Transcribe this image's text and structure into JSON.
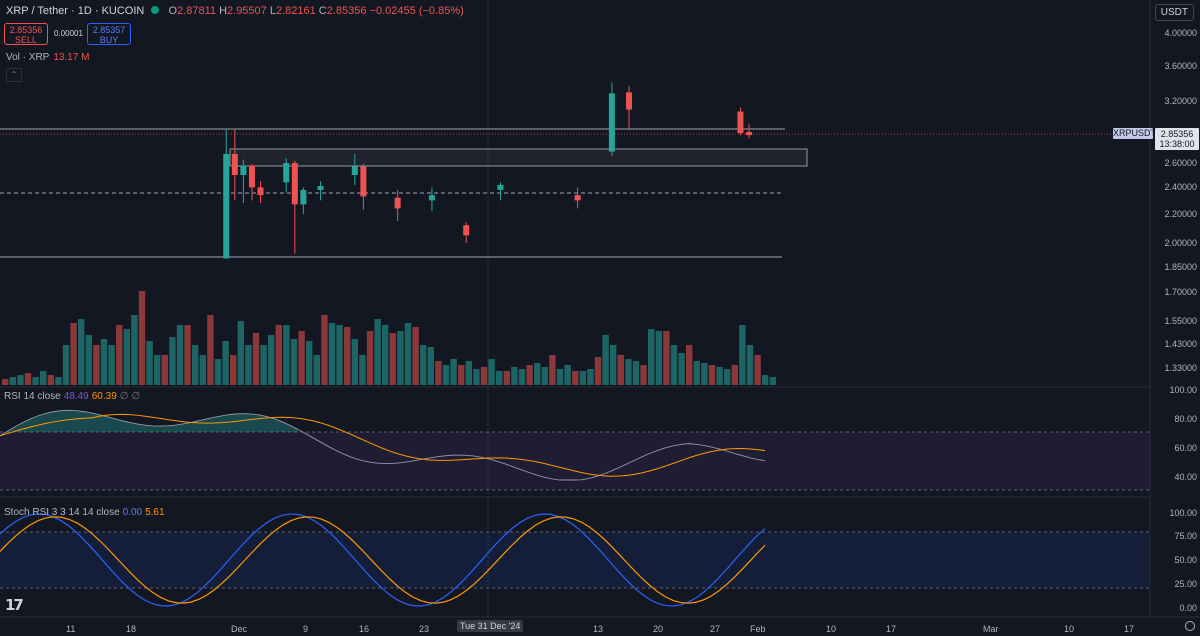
{
  "header": {
    "symbol": "XRP / Tether · 1D · KUCOIN",
    "open_label": "O",
    "open": "2.87811",
    "high_label": "H",
    "high": "2.95507",
    "low_label": "L",
    "low": "2.82161",
    "close_label": "C",
    "close": "2.85356",
    "change": "−0.02455 (−0.85%)"
  },
  "trade": {
    "sell_price": "2.85356",
    "sell_label": "SELL",
    "spread": "0.00001",
    "buy_price": "2.85357",
    "buy_label": "BUY"
  },
  "currency_button": "USDT",
  "volume_legend": {
    "label": "Vol · XRP",
    "value": "13.17 M"
  },
  "rsi_legend": {
    "label": "RSI 14 close",
    "v1": "48.49",
    "v2": "60.39",
    "v3": "∅",
    "v4": "∅"
  },
  "stoch_legend": {
    "label": "Stoch RSI 3 3 14 14 close",
    "v1": "0.00",
    "v2": "5.61"
  },
  "price_axis": [
    "4.00000",
    "3.60000",
    "3.20000",
    "2.60000",
    "2.40000",
    "2.20000",
    "2.00000",
    "1.85000",
    "1.70000",
    "1.55000",
    "1.43000",
    "1.33000"
  ],
  "current_price_tag": {
    "symbol": "XRPUSDT",
    "price": "2.85356",
    "countdown": "13:38:00"
  },
  "rsi_axis": [
    "100.00",
    "80.00",
    "60.00",
    "40.00"
  ],
  "stoch_axis": [
    "100.00",
    "75.00",
    "50.00",
    "25.00",
    "0.00"
  ],
  "time_axis": [
    "11",
    "18",
    "Dec",
    "9",
    "16",
    "23",
    "13",
    "20",
    "27",
    "Feb",
    "10",
    "17",
    "Mar",
    "10",
    "17"
  ],
  "crosshair_date": "Tue 31 Dec '24",
  "colors": {
    "up": "#26a69a",
    "down": "#ef5350",
    "bg": "#131722",
    "rsi": "#7e57c2",
    "ma": "#ff9800",
    "stoch_k": "#2962ff",
    "stoch_d": "#ff9800"
  },
  "chart_data": {
    "type": "candlestick",
    "interval": "1D",
    "log_scale": true,
    "x_start": "2024-11-07",
    "price_ylim": [
      1.33,
      4.0
    ],
    "candles": [
      {
        "date": "2024-12-02",
        "o": 1.9,
        "h": 2.9,
        "l": 1.9,
        "c": 2.68
      },
      {
        "date": "2024-12-03",
        "o": 2.68,
        "h": 2.9,
        "l": 2.3,
        "c": 2.5
      },
      {
        "date": "2024-12-04",
        "o": 2.5,
        "h": 2.63,
        "l": 2.28,
        "c": 2.58
      },
      {
        "date": "2024-12-05",
        "o": 2.58,
        "h": 2.59,
        "l": 2.3,
        "c": 2.4
      },
      {
        "date": "2024-12-06",
        "o": 2.4,
        "h": 2.45,
        "l": 2.28,
        "c": 2.34
      },
      {
        "date": "2024-12-09",
        "o": 2.44,
        "h": 2.64,
        "l": 2.36,
        "c": 2.6
      },
      {
        "date": "2024-12-10",
        "o": 2.6,
        "h": 2.62,
        "l": 1.93,
        "c": 2.27
      },
      {
        "date": "2024-12-11",
        "o": 2.27,
        "h": 2.4,
        "l": 2.2,
        "c": 2.38
      },
      {
        "date": "2024-12-13",
        "o": 2.38,
        "h": 2.45,
        "l": 2.3,
        "c": 2.41
      },
      {
        "date": "2024-12-17",
        "o": 2.5,
        "h": 2.68,
        "l": 2.42,
        "c": 2.57
      },
      {
        "date": "2024-12-18",
        "o": 2.57,
        "h": 2.59,
        "l": 2.23,
        "c": 2.33
      },
      {
        "date": "2024-12-22",
        "o": 2.32,
        "h": 2.38,
        "l": 2.15,
        "c": 2.24
      },
      {
        "date": "2024-12-26",
        "o": 2.3,
        "h": 2.4,
        "l": 2.22,
        "c": 2.34
      },
      {
        "date": "2024-12-30",
        "o": 2.12,
        "h": 2.14,
        "l": 2.0,
        "c": 2.05
      },
      {
        "date": "2025-01-03",
        "o": 2.38,
        "h": 2.44,
        "l": 2.3,
        "c": 2.42
      },
      {
        "date": "2025-01-12",
        "o": 2.34,
        "h": 2.4,
        "l": 2.24,
        "c": 2.3
      },
      {
        "date": "2025-01-16",
        "o": 2.7,
        "h": 3.39,
        "l": 2.66,
        "c": 3.27
      },
      {
        "date": "2025-01-18",
        "o": 3.28,
        "h": 3.35,
        "l": 2.9,
        "c": 3.1
      },
      {
        "date": "2025-01-31",
        "o": 3.08,
        "h": 3.12,
        "l": 2.85,
        "c": 2.87
      },
      {
        "date": "2025-02-01",
        "o": 2.88,
        "h": 2.96,
        "l": 2.82,
        "c": 2.85
      }
    ],
    "rsi": {
      "last": 48.49,
      "ma_last": 60.39,
      "ylim": [
        30,
        100
      ]
    },
    "stoch_rsi": {
      "k_last": 0.0,
      "d_last": 5.61,
      "ylim": [
        0,
        100
      ]
    }
  }
}
